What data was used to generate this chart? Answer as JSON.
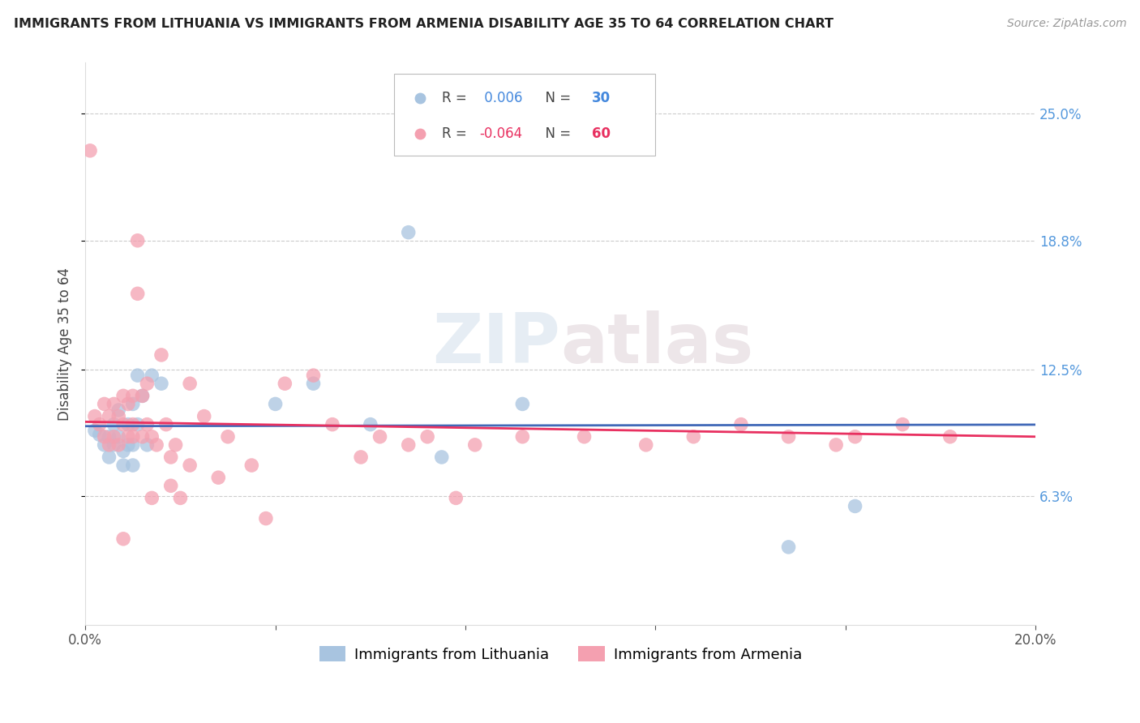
{
  "title": "IMMIGRANTS FROM LITHUANIA VS IMMIGRANTS FROM ARMENIA DISABILITY AGE 35 TO 64 CORRELATION CHART",
  "source": "Source: ZipAtlas.com",
  "ylabel": "Disability Age 35 to 64",
  "xlim": [
    0.0,
    0.2
  ],
  "ylim": [
    0.0,
    0.275
  ],
  "xticks": [
    0.0,
    0.04,
    0.08,
    0.12,
    0.16,
    0.2
  ],
  "xtick_labels": [
    "0.0%",
    "",
    "",
    "",
    "",
    "20.0%"
  ],
  "ytick_labels_right": [
    "6.3%",
    "12.5%",
    "18.8%",
    "25.0%"
  ],
  "yticks_right": [
    0.063,
    0.125,
    0.188,
    0.25
  ],
  "series1_color": "#a8c4e0",
  "series2_color": "#f4a0b0",
  "series1_label": "Immigrants from Lithuania",
  "series2_label": "Immigrants from Armenia",
  "R1": 0.006,
  "N1": 30,
  "R2": -0.064,
  "N2": 60,
  "trendline1_color": "#4169b8",
  "trendline2_color": "#e83060",
  "watermark": "ZIPatlas",
  "lithuania_x": [
    0.002,
    0.003,
    0.004,
    0.005,
    0.005,
    0.006,
    0.006,
    0.007,
    0.007,
    0.008,
    0.008,
    0.009,
    0.009,
    0.01,
    0.01,
    0.01,
    0.011,
    0.011,
    0.012,
    0.013,
    0.014,
    0.016,
    0.04,
    0.048,
    0.06,
    0.068,
    0.075,
    0.092,
    0.148,
    0.162
  ],
  "lithuania_y": [
    0.095,
    0.093,
    0.088,
    0.082,
    0.092,
    0.088,
    0.098,
    0.092,
    0.105,
    0.078,
    0.085,
    0.088,
    0.098,
    0.078,
    0.088,
    0.108,
    0.098,
    0.122,
    0.112,
    0.088,
    0.122,
    0.118,
    0.108,
    0.118,
    0.098,
    0.192,
    0.082,
    0.108,
    0.038,
    0.058
  ],
  "armenia_x": [
    0.001,
    0.002,
    0.003,
    0.004,
    0.004,
    0.005,
    0.005,
    0.006,
    0.006,
    0.007,
    0.007,
    0.008,
    0.008,
    0.009,
    0.009,
    0.01,
    0.01,
    0.01,
    0.011,
    0.011,
    0.012,
    0.012,
    0.013,
    0.013,
    0.014,
    0.015,
    0.016,
    0.017,
    0.018,
    0.019,
    0.02,
    0.022,
    0.025,
    0.028,
    0.03,
    0.035,
    0.038,
    0.042,
    0.048,
    0.052,
    0.058,
    0.062,
    0.068,
    0.072,
    0.078,
    0.082,
    0.092,
    0.105,
    0.118,
    0.128,
    0.138,
    0.148,
    0.158,
    0.162,
    0.172,
    0.182,
    0.008,
    0.014,
    0.018,
    0.022
  ],
  "armenia_y": [
    0.232,
    0.102,
    0.098,
    0.092,
    0.108,
    0.088,
    0.102,
    0.092,
    0.108,
    0.088,
    0.102,
    0.098,
    0.112,
    0.092,
    0.108,
    0.092,
    0.098,
    0.112,
    0.188,
    0.162,
    0.092,
    0.112,
    0.098,
    0.118,
    0.092,
    0.088,
    0.132,
    0.098,
    0.082,
    0.088,
    0.062,
    0.078,
    0.102,
    0.072,
    0.092,
    0.078,
    0.052,
    0.118,
    0.122,
    0.098,
    0.082,
    0.092,
    0.088,
    0.092,
    0.062,
    0.088,
    0.092,
    0.092,
    0.088,
    0.092,
    0.098,
    0.092,
    0.088,
    0.092,
    0.098,
    0.092,
    0.042,
    0.062,
    0.068,
    0.118
  ]
}
